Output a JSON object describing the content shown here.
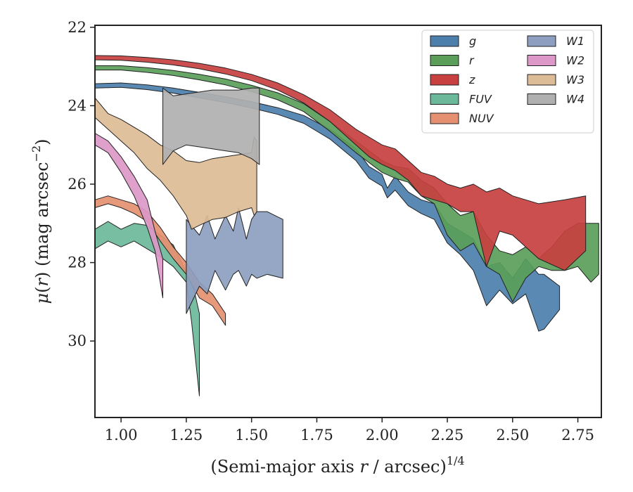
{
  "chart_data": {
    "type": "area",
    "xlabel": "(Semi-major axis r / arcsec)",
    "xlabel_parts": {
      "prefix": "(Semi-major axis ",
      "var": "r",
      "middle": " / arcsec)",
      "exponent": "1/4"
    },
    "ylabel": "μ(r) (mag arcsec⁻²)",
    "ylabel_parts": {
      "mu": "μ",
      "lparen": "(",
      "var": "r",
      "rparen": ")",
      "rest": " (mag arcsec",
      "exponent": "−2",
      "close": ")"
    },
    "xlim": [
      0.9,
      2.84
    ],
    "ylim": [
      31.95,
      21.95
    ],
    "y_inverted": true,
    "x_ticks": [
      1.0,
      1.25,
      1.5,
      1.75,
      2.0,
      2.25,
      2.5,
      2.75
    ],
    "x_tick_labels": [
      "1.00",
      "1.25",
      "1.50",
      "1.75",
      "2.00",
      "2.25",
      "2.50",
      "2.75"
    ],
    "y_ticks": [
      22,
      24,
      26,
      28,
      30
    ],
    "y_tick_labels": [
      "22",
      "24",
      "26",
      "28",
      "30"
    ],
    "grid": false,
    "legend_position": "top-right",
    "legend_columns": 2,
    "series": [
      {
        "name": "g",
        "color": "#4c7fac",
        "upper": [
          [
            0.9,
            23.44
          ],
          [
            1.0,
            23.42
          ],
          [
            1.1,
            23.47
          ],
          [
            1.2,
            23.55
          ],
          [
            1.3,
            23.66
          ],
          [
            1.4,
            23.77
          ],
          [
            1.5,
            23.9
          ],
          [
            1.6,
            24.05
          ],
          [
            1.7,
            24.25
          ],
          [
            1.8,
            24.6
          ],
          [
            1.9,
            25.1
          ],
          [
            1.95,
            25.55
          ],
          [
            2.0,
            25.75
          ],
          [
            2.02,
            26.1
          ],
          [
            2.05,
            25.8
          ],
          [
            2.1,
            26.2
          ],
          [
            2.15,
            26.4
          ],
          [
            2.2,
            26.5
          ],
          [
            2.25,
            27.0
          ],
          [
            2.3,
            27.2
          ],
          [
            2.35,
            27.4
          ],
          [
            2.4,
            28.1
          ],
          [
            2.45,
            28.0
          ],
          [
            2.5,
            28.4
          ],
          [
            2.55,
            27.9
          ],
          [
            2.6,
            28.3
          ],
          [
            2.62,
            28.3
          ],
          [
            2.68,
            28.6
          ]
        ],
        "lower": [
          [
            0.9,
            23.55
          ],
          [
            1.0,
            23.53
          ],
          [
            1.1,
            23.59
          ],
          [
            1.2,
            23.68
          ],
          [
            1.3,
            23.8
          ],
          [
            1.4,
            23.92
          ],
          [
            1.5,
            24.06
          ],
          [
            1.6,
            24.22
          ],
          [
            1.7,
            24.45
          ],
          [
            1.8,
            24.85
          ],
          [
            1.9,
            25.4
          ],
          [
            1.95,
            25.85
          ],
          [
            2.0,
            26.05
          ],
          [
            2.02,
            26.35
          ],
          [
            2.05,
            26.15
          ],
          [
            2.1,
            26.55
          ],
          [
            2.15,
            26.75
          ],
          [
            2.2,
            26.9
          ],
          [
            2.25,
            27.5
          ],
          [
            2.3,
            27.8
          ],
          [
            2.35,
            28.2
          ],
          [
            2.4,
            29.1
          ],
          [
            2.45,
            28.7
          ],
          [
            2.5,
            29.05
          ],
          [
            2.55,
            28.8
          ],
          [
            2.6,
            29.75
          ],
          [
            2.62,
            29.7
          ],
          [
            2.68,
            29.2
          ]
        ]
      },
      {
        "name": "r",
        "color": "#5a9e5a",
        "upper": [
          [
            0.9,
            22.98
          ],
          [
            1.0,
            22.98
          ],
          [
            1.1,
            23.03
          ],
          [
            1.2,
            23.1
          ],
          [
            1.3,
            23.2
          ],
          [
            1.4,
            23.32
          ],
          [
            1.5,
            23.48
          ],
          [
            1.6,
            23.67
          ],
          [
            1.7,
            23.95
          ],
          [
            1.8,
            24.4
          ],
          [
            1.9,
            24.9
          ],
          [
            2.0,
            25.4
          ],
          [
            2.05,
            25.55
          ],
          [
            2.1,
            25.6
          ],
          [
            2.15,
            25.9
          ],
          [
            2.2,
            26.1
          ],
          [
            2.25,
            26.5
          ],
          [
            2.3,
            26.8
          ],
          [
            2.35,
            26.7
          ],
          [
            2.4,
            27.3
          ],
          [
            2.45,
            27.7
          ],
          [
            2.5,
            27.8
          ],
          [
            2.55,
            27.6
          ],
          [
            2.6,
            27.9
          ],
          [
            2.65,
            27.6
          ],
          [
            2.7,
            27.2
          ],
          [
            2.75,
            27.0
          ],
          [
            2.8,
            27.0
          ],
          [
            2.83,
            27.0
          ]
        ],
        "lower": [
          [
            0.9,
            23.09
          ],
          [
            1.0,
            23.09
          ],
          [
            1.1,
            23.15
          ],
          [
            1.2,
            23.23
          ],
          [
            1.3,
            23.34
          ],
          [
            1.4,
            23.47
          ],
          [
            1.5,
            23.64
          ],
          [
            1.6,
            23.85
          ],
          [
            1.7,
            24.15
          ],
          [
            1.8,
            24.65
          ],
          [
            1.9,
            25.2
          ],
          [
            2.0,
            25.7
          ],
          [
            2.05,
            25.85
          ],
          [
            2.1,
            25.95
          ],
          [
            2.15,
            26.3
          ],
          [
            2.2,
            26.5
          ],
          [
            2.25,
            27.3
          ],
          [
            2.3,
            27.7
          ],
          [
            2.35,
            27.5
          ],
          [
            2.4,
            28.1
          ],
          [
            2.45,
            28.3
          ],
          [
            2.5,
            29.0
          ],
          [
            2.55,
            28.4
          ],
          [
            2.6,
            28.1
          ],
          [
            2.65,
            28.2
          ],
          [
            2.7,
            28.2
          ],
          [
            2.75,
            28.1
          ],
          [
            2.8,
            28.5
          ],
          [
            2.83,
            28.3
          ]
        ]
      },
      {
        "name": "z",
        "color": "#c84040",
        "upper": [
          [
            0.9,
            22.72
          ],
          [
            1.0,
            22.73
          ],
          [
            1.1,
            22.77
          ],
          [
            1.2,
            22.83
          ],
          [
            1.3,
            22.92
          ],
          [
            1.4,
            23.04
          ],
          [
            1.5,
            23.2
          ],
          [
            1.6,
            23.42
          ],
          [
            1.7,
            23.72
          ],
          [
            1.8,
            24.1
          ],
          [
            1.9,
            24.6
          ],
          [
            1.95,
            24.8
          ],
          [
            2.0,
            25.0
          ],
          [
            2.05,
            25.1
          ],
          [
            2.1,
            25.4
          ],
          [
            2.15,
            25.7
          ],
          [
            2.2,
            25.8
          ],
          [
            2.25,
            26.0
          ],
          [
            2.3,
            26.1
          ],
          [
            2.35,
            26.0
          ],
          [
            2.4,
            26.2
          ],
          [
            2.45,
            26.1
          ],
          [
            2.5,
            26.3
          ],
          [
            2.55,
            26.4
          ],
          [
            2.6,
            26.5
          ],
          [
            2.7,
            26.4
          ],
          [
            2.78,
            26.3
          ]
        ],
        "lower": [
          [
            0.9,
            22.83
          ],
          [
            1.0,
            22.84
          ],
          [
            1.1,
            22.89
          ],
          [
            1.2,
            22.96
          ],
          [
            1.3,
            23.06
          ],
          [
            1.4,
            23.19
          ],
          [
            1.5,
            23.36
          ],
          [
            1.6,
            23.6
          ],
          [
            1.7,
            23.93
          ],
          [
            1.8,
            24.4
          ],
          [
            1.9,
            25.0
          ],
          [
            1.95,
            25.3
          ],
          [
            2.0,
            25.5
          ],
          [
            2.05,
            25.65
          ],
          [
            2.1,
            25.9
          ],
          [
            2.15,
            26.3
          ],
          [
            2.2,
            26.4
          ],
          [
            2.25,
            26.5
          ],
          [
            2.3,
            26.7
          ],
          [
            2.35,
            26.7
          ],
          [
            2.4,
            28.1
          ],
          [
            2.45,
            27.2
          ],
          [
            2.5,
            27.3
          ],
          [
            2.55,
            27.6
          ],
          [
            2.6,
            27.9
          ],
          [
            2.7,
            28.2
          ],
          [
            2.78,
            27.7
          ]
        ]
      },
      {
        "name": "FUV",
        "color": "#6cb89a",
        "upper": [
          [
            0.9,
            27.15
          ],
          [
            0.95,
            26.95
          ],
          [
            1.0,
            27.15
          ],
          [
            1.05,
            27.0
          ],
          [
            1.1,
            27.05
          ],
          [
            1.15,
            27.3
          ],
          [
            1.2,
            27.55
          ],
          [
            1.25,
            28.25
          ],
          [
            1.28,
            28.7
          ],
          [
            1.3,
            29.3
          ]
        ],
        "lower": [
          [
            0.9,
            27.65
          ],
          [
            0.95,
            27.45
          ],
          [
            1.0,
            27.6
          ],
          [
            1.05,
            27.45
          ],
          [
            1.1,
            27.65
          ],
          [
            1.15,
            27.85
          ],
          [
            1.2,
            28.1
          ],
          [
            1.25,
            28.5
          ],
          [
            1.27,
            29.5
          ],
          [
            1.3,
            31.4
          ]
        ]
      },
      {
        "name": "NUV",
        "color": "#e59070",
        "upper": [
          [
            0.9,
            26.4
          ],
          [
            0.95,
            26.3
          ],
          [
            1.0,
            26.4
          ],
          [
            1.05,
            26.5
          ],
          [
            1.1,
            26.7
          ],
          [
            1.15,
            27.1
          ],
          [
            1.2,
            27.6
          ],
          [
            1.25,
            28.0
          ],
          [
            1.3,
            28.5
          ],
          [
            1.35,
            28.8
          ],
          [
            1.4,
            29.3
          ]
        ],
        "lower": [
          [
            0.9,
            26.6
          ],
          [
            0.95,
            26.5
          ],
          [
            1.0,
            26.6
          ],
          [
            1.05,
            26.75
          ],
          [
            1.1,
            26.95
          ],
          [
            1.15,
            27.45
          ],
          [
            1.2,
            27.9
          ],
          [
            1.25,
            28.3
          ],
          [
            1.3,
            28.9
          ],
          [
            1.35,
            29.1
          ],
          [
            1.4,
            29.6
          ]
        ]
      },
      {
        "name": "W1",
        "color": "#8d9ec0",
        "upper": [
          [
            1.25,
            26.9
          ],
          [
            1.3,
            27.3
          ],
          [
            1.33,
            26.8
          ],
          [
            1.36,
            27.4
          ],
          [
            1.4,
            26.8
          ],
          [
            1.43,
            27.2
          ],
          [
            1.45,
            26.6
          ],
          [
            1.48,
            27.4
          ],
          [
            1.5,
            26.9
          ],
          [
            1.52,
            26.7
          ],
          [
            1.56,
            26.7
          ],
          [
            1.62,
            26.9
          ]
        ],
        "lower": [
          [
            1.25,
            29.3
          ],
          [
            1.3,
            28.6
          ],
          [
            1.33,
            28.8
          ],
          [
            1.36,
            28.2
          ],
          [
            1.4,
            28.7
          ],
          [
            1.43,
            28.3
          ],
          [
            1.45,
            28.2
          ],
          [
            1.48,
            28.6
          ],
          [
            1.5,
            28.3
          ],
          [
            1.52,
            28.4
          ],
          [
            1.56,
            28.3
          ],
          [
            1.62,
            28.4
          ]
        ]
      },
      {
        "name": "W2",
        "color": "#dc98c8",
        "upper": [
          [
            0.9,
            24.7
          ],
          [
            0.95,
            24.9
          ],
          [
            1.0,
            25.3
          ],
          [
            1.05,
            25.8
          ],
          [
            1.1,
            26.4
          ],
          [
            1.13,
            27.2
          ],
          [
            1.16,
            27.9
          ]
        ],
        "lower": [
          [
            0.9,
            25.0
          ],
          [
            0.95,
            25.2
          ],
          [
            1.0,
            25.7
          ],
          [
            1.05,
            26.3
          ],
          [
            1.1,
            27.1
          ],
          [
            1.13,
            27.7
          ],
          [
            1.16,
            28.9
          ]
        ]
      },
      {
        "name": "W3",
        "color": "#dcbc96",
        "upper": [
          [
            0.9,
            23.8
          ],
          [
            0.95,
            24.2
          ],
          [
            1.0,
            24.35
          ],
          [
            1.05,
            24.55
          ],
          [
            1.1,
            24.75
          ],
          [
            1.15,
            25.0
          ],
          [
            1.2,
            25.15
          ],
          [
            1.25,
            25.4
          ],
          [
            1.3,
            25.45
          ],
          [
            1.35,
            25.35
          ],
          [
            1.4,
            25.3
          ],
          [
            1.45,
            25.25
          ],
          [
            1.5,
            25.2
          ],
          [
            1.51,
            24.8
          ],
          [
            1.52,
            24.9
          ]
        ],
        "lower": [
          [
            0.9,
            24.3
          ],
          [
            0.95,
            24.6
          ],
          [
            1.0,
            24.9
          ],
          [
            1.05,
            25.2
          ],
          [
            1.1,
            25.6
          ],
          [
            1.15,
            25.9
          ],
          [
            1.2,
            26.3
          ],
          [
            1.25,
            26.8
          ],
          [
            1.27,
            27.15
          ],
          [
            1.3,
            27.05
          ],
          [
            1.35,
            26.9
          ],
          [
            1.4,
            26.85
          ],
          [
            1.45,
            26.7
          ],
          [
            1.5,
            26.6
          ],
          [
            1.51,
            26.8
          ],
          [
            1.52,
            26.7
          ]
        ]
      },
      {
        "name": "W4",
        "color": "#b0b0b0",
        "upper": [
          [
            1.16,
            23.55
          ],
          [
            1.2,
            23.75
          ],
          [
            1.25,
            23.7
          ],
          [
            1.3,
            23.65
          ],
          [
            1.35,
            23.6
          ],
          [
            1.4,
            23.6
          ],
          [
            1.45,
            23.6
          ],
          [
            1.5,
            23.55
          ],
          [
            1.53,
            23.55
          ]
        ],
        "lower": [
          [
            1.16,
            25.5
          ],
          [
            1.2,
            25.15
          ],
          [
            1.25,
            25.0
          ],
          [
            1.3,
            25.05
          ],
          [
            1.35,
            25.1
          ],
          [
            1.4,
            25.15
          ],
          [
            1.45,
            25.2
          ],
          [
            1.5,
            25.35
          ],
          [
            1.53,
            25.5
          ]
        ]
      }
    ]
  }
}
